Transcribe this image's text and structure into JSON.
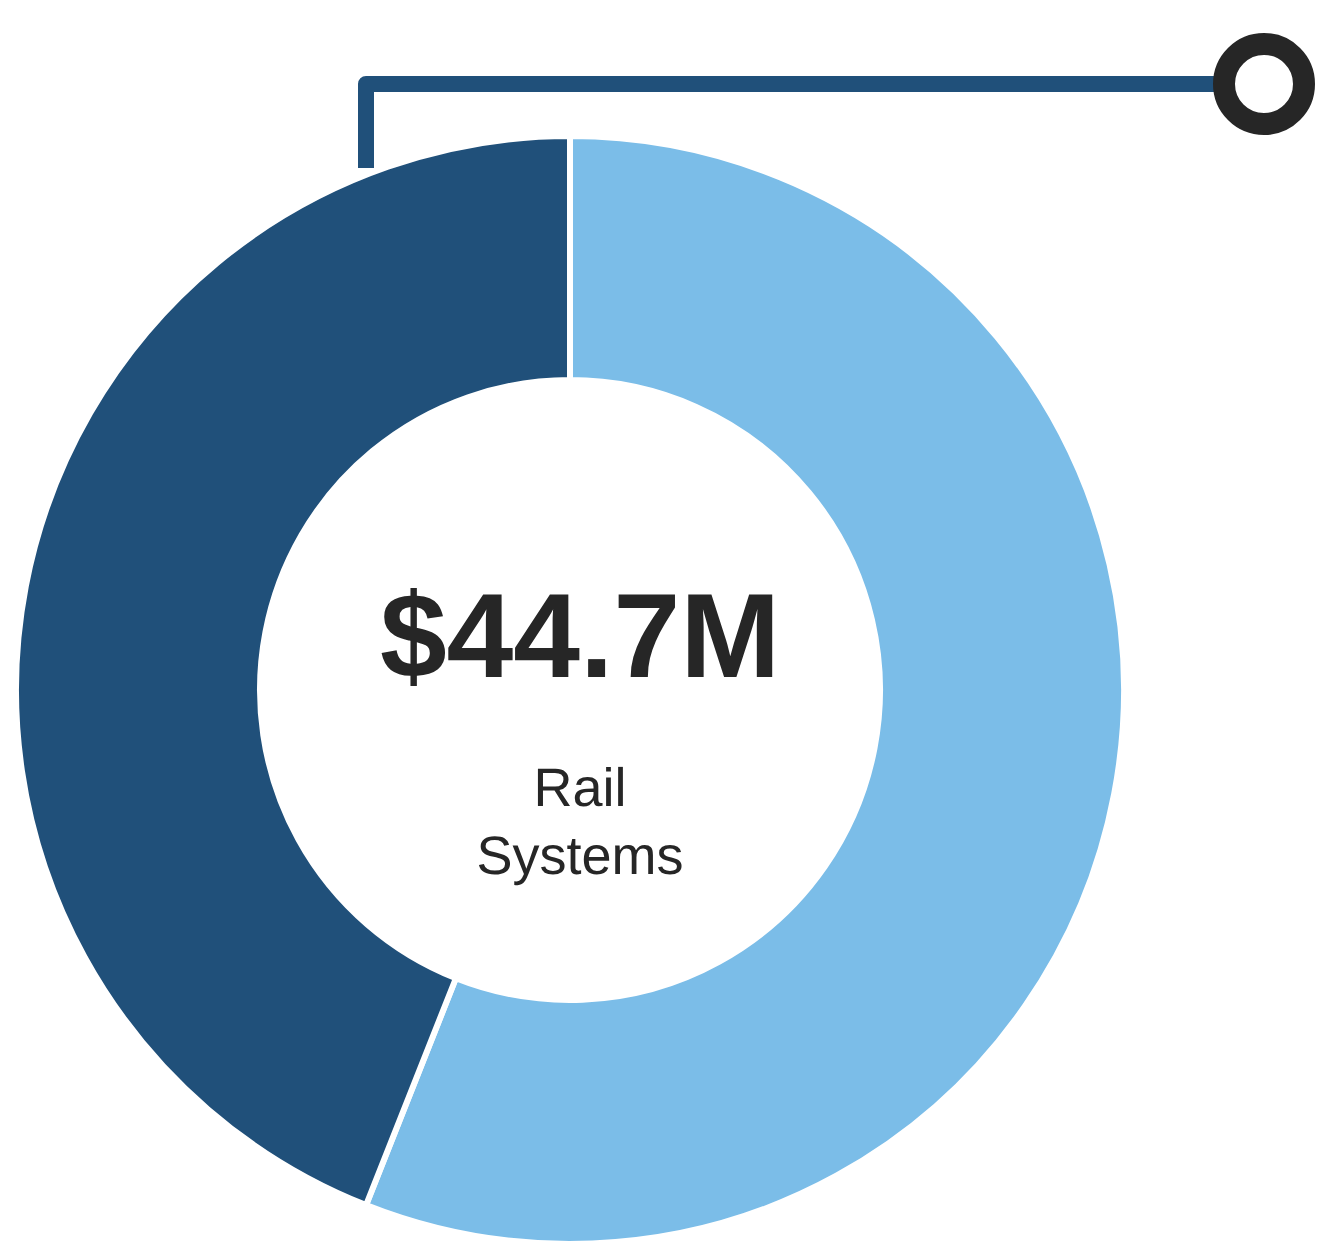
{
  "chart_data": {
    "type": "donut",
    "title": "$44.7M",
    "subtitle": "Rail Systems",
    "categories": [
      null,
      null
    ],
    "values": [
      56,
      44
    ],
    "colors": [
      "#7bbde8",
      "#20507a"
    ]
  }
}
